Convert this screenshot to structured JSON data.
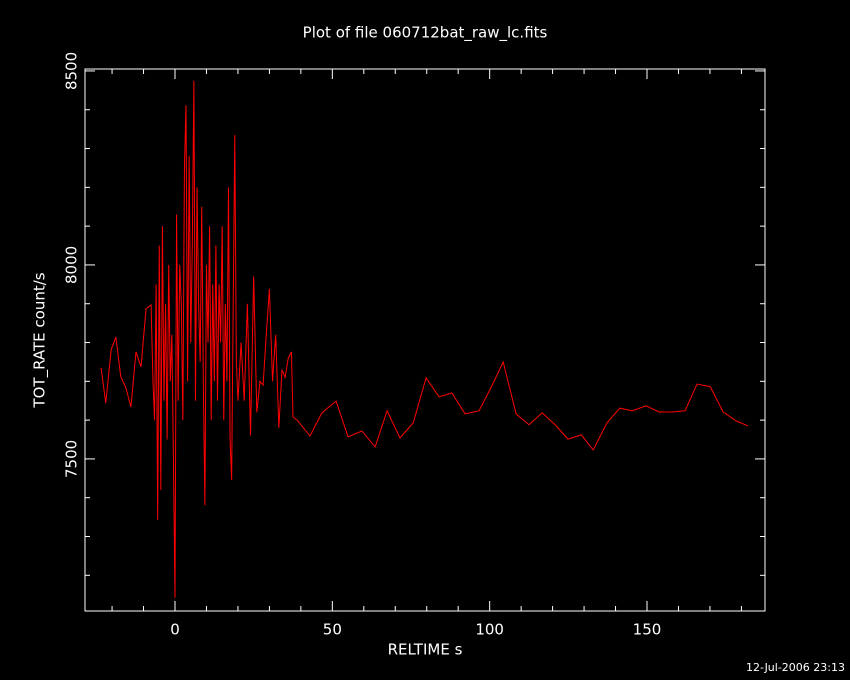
{
  "chart_data": {
    "type": "line",
    "title": "Plot of file 060712bat_raw_lc.fits",
    "xlabel": "RELTIME  s",
    "ylabel": "TOT_RATE  count/s",
    "footer": "12-Jul-2006 23:13",
    "color": "#ff0000",
    "xlim": [
      -28.6,
      187.5
    ],
    "ylim": [
      7108,
      8505
    ],
    "xticks": [
      0,
      50,
      100,
      150
    ],
    "yticks": [
      7500,
      8000,
      8500
    ],
    "xminorticks": [
      -20,
      -10,
      10,
      20,
      30,
      40,
      60,
      70,
      80,
      90,
      110,
      120,
      130,
      140,
      160,
      170,
      180
    ],
    "yminorticks": [
      7200,
      7300,
      7400,
      7600,
      7700,
      7800,
      7900,
      8100,
      8200,
      8300,
      8400
    ],
    "x": [
      -23.5,
      -22,
      -20.3,
      -18.8,
      -17.2,
      -15.6,
      -14,
      -12.4,
      -10.8,
      -9.2,
      -7.6,
      -7,
      -6.5,
      -6,
      -5.5,
      -5,
      -4.5,
      -4,
      -3.5,
      -3,
      -2.5,
      -2,
      -1.5,
      -1,
      -0.5,
      0,
      0.5,
      1,
      1.5,
      2,
      2.5,
      3,
      3.5,
      4,
      4.5,
      5,
      5.5,
      6,
      6.5,
      7,
      7.5,
      8,
      8.5,
      9,
      9.5,
      10,
      10.5,
      11,
      11.5,
      12,
      12.5,
      13,
      13.5,
      14,
      14.5,
      15,
      15.5,
      16,
      16.5,
      17,
      17.5,
      18,
      18.5,
      19,
      19.5,
      20,
      21,
      22,
      23,
      24,
      25,
      26,
      27,
      28,
      29,
      30,
      31,
      32,
      33,
      34,
      35,
      36,
      37,
      37.5,
      38.8,
      42.9,
      46.7,
      51.2,
      55,
      59.4,
      63.6,
      67.4,
      71.5,
      75.7,
      79.8,
      83.9,
      88,
      92.2,
      96.6,
      100.4,
      104.3,
      108.4,
      112.5,
      116.7,
      120.8,
      124.9,
      129.1,
      132.9,
      137.3,
      141.4,
      145.3,
      149.7,
      153.8,
      158,
      162.1,
      165.9,
      170.1,
      174.2,
      178.3,
      182.1
    ],
    "values": [
      7735,
      7644,
      7781,
      7814,
      7711,
      7683,
      7634,
      7776,
      7737,
      7887,
      7897,
      7700,
      7600,
      7950,
      7343,
      8050,
      7420,
      8100,
      7650,
      7900,
      7550,
      8000,
      7700,
      7820,
      7500,
      7142,
      8130,
      7650,
      8000,
      7900,
      7600,
      8250,
      8412,
      7700,
      8280,
      7800,
      8050,
      8474,
      7650,
      8200,
      7900,
      7750,
      8150,
      7700,
      7381,
      8000,
      7800,
      8100,
      7600,
      7950,
      7700,
      8050,
      7650,
      7950,
      7800,
      8100,
      7600,
      7900,
      7700,
      8200,
      7550,
      7446,
      7900,
      8335,
      7750,
      7650,
      7800,
      7650,
      7900,
      7560,
      7970,
      7620,
      7700,
      7690,
      7820,
      7938,
      7700,
      7820,
      7580,
      7730,
      7710,
      7760,
      7776,
      7608,
      7600,
      7559,
      7619,
      7649,
      7557,
      7572,
      7531,
      7624,
      7554,
      7593,
      7709,
      7660,
      7670,
      7616,
      7624,
      7683,
      7750,
      7616,
      7588,
      7619,
      7588,
      7551,
      7562,
      7523,
      7593,
      7631,
      7624,
      7637,
      7621,
      7621,
      7624,
      7693,
      7686,
      7621,
      7598,
      7585
    ]
  }
}
